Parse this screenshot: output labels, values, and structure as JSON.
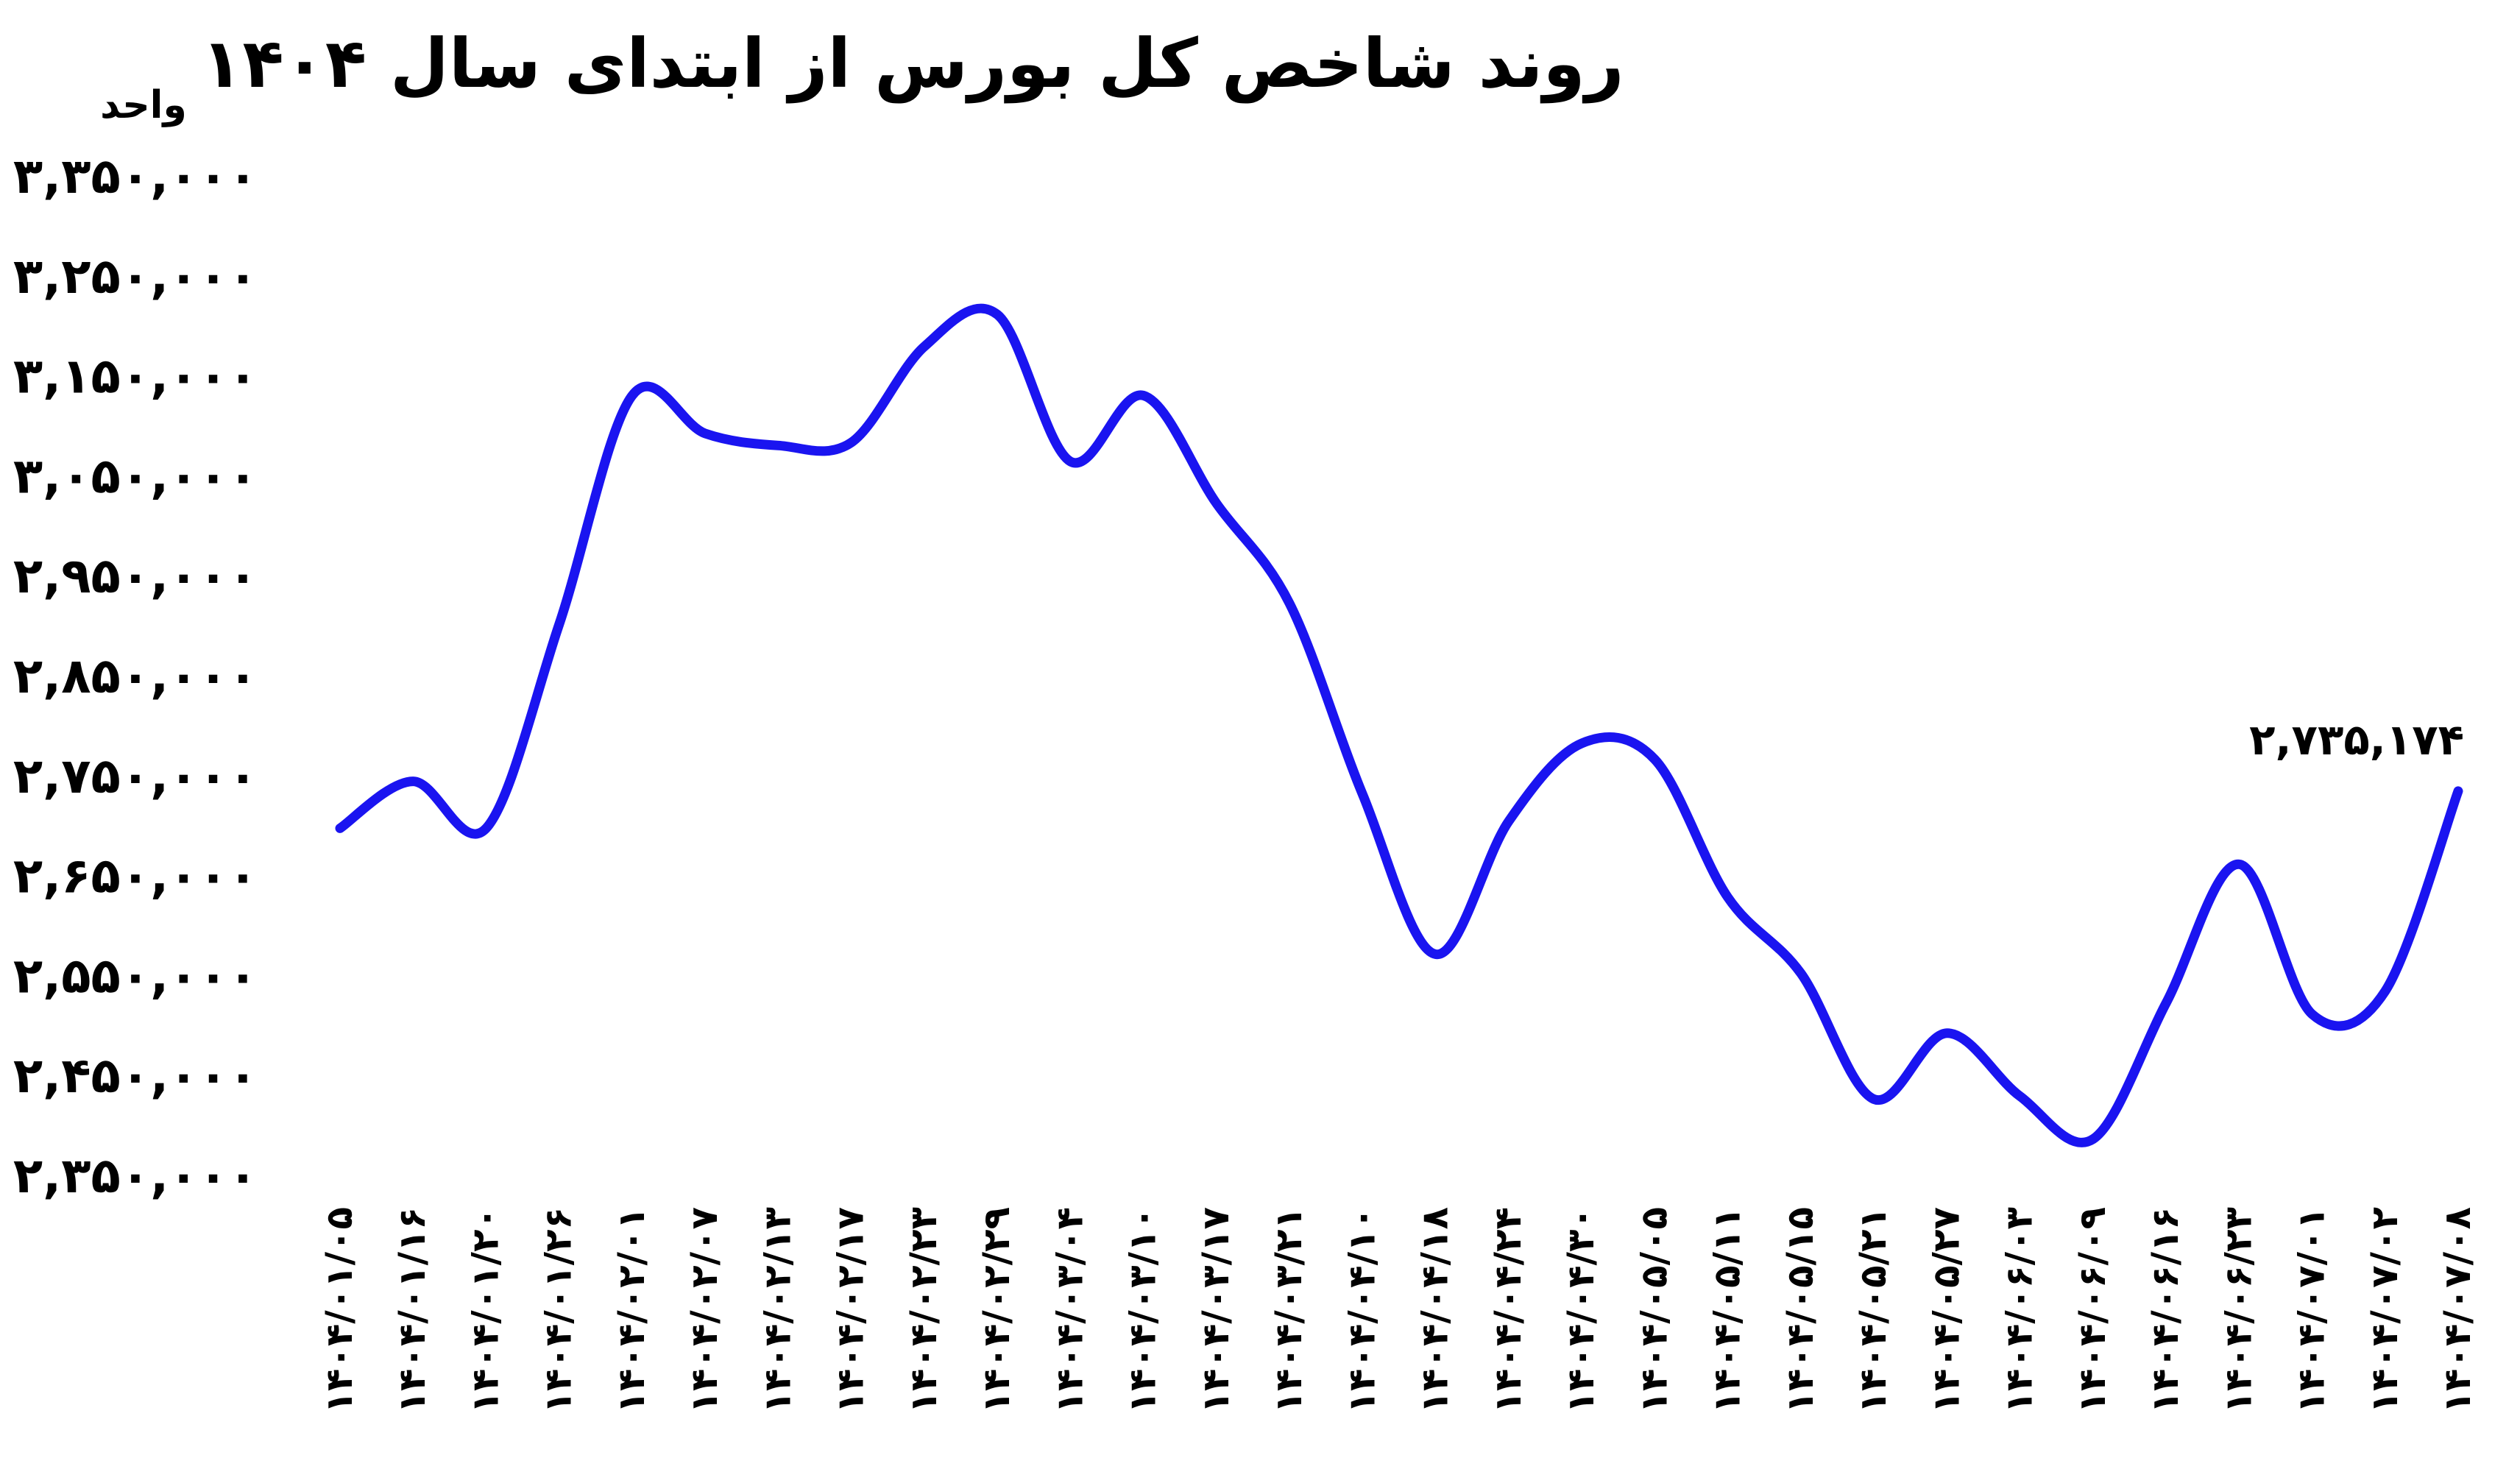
{
  "chart_data": {
    "type": "line",
    "title": "روند شاخص کل بورس از ابتدای سال ۱۴۰۴",
    "ylabel": "واحد",
    "xlabel": "",
    "ylim": [
      2350000,
      3350000
    ],
    "grid": false,
    "legend": "none",
    "colors": {
      "line": "#1a14f0",
      "text": "#000000",
      "background": "#ffffff"
    },
    "y_ticks": [
      "۲,۳۵۰,۰۰۰",
      "۲,۴۵۰,۰۰۰",
      "۲,۵۵۰,۰۰۰",
      "۲,۶۵۰,۰۰۰",
      "۲,۷۵۰,۰۰۰",
      "۲,۸۵۰,۰۰۰",
      "۲,۹۵۰,۰۰۰",
      "۳,۰۵۰,۰۰۰",
      "۳,۱۵۰,۰۰۰",
      "۳,۲۵۰,۰۰۰",
      "۳,۳۵۰,۰۰۰"
    ],
    "y_tick_values": [
      2350000,
      2450000,
      2550000,
      2650000,
      2750000,
      2850000,
      2950000,
      3050000,
      3150000,
      3250000,
      3350000
    ],
    "categories": [
      "۱۴۰۴/۰۱/۰۵",
      "۱۴۰۴/۰۱/۱۶",
      "۱۴۰۴/۰۱/۲۰",
      "۱۴۰۴/۰۱/۲۶",
      "۱۴۰۴/۰۲/۰۱",
      "۱۴۰۴/۰۲/۰۷",
      "۱۴۰۴/۰۲/۱۳",
      "۱۴۰۴/۰۲/۱۷",
      "۱۴۰۴/۰۲/۲۳",
      "۱۴۰۴/۰۲/۲۹",
      "۱۴۰۴/۰۳/۰۴",
      "۱۴۰۴/۰۳/۱۰",
      "۱۴۰۴/۰۳/۱۷",
      "۱۴۰۴/۰۳/۲۱",
      "۱۴۰۴/۰۴/۱۰",
      "۱۴۰۴/۰۴/۱۸",
      "۱۴۰۴/۰۴/۲۴",
      "۱۴۰۴/۰۴/۳۰",
      "۱۴۰۴/۰۵/۰۵",
      "۱۴۰۴/۰۵/۱۱",
      "۱۴۰۴/۰۵/۱۵",
      "۱۴۰۴/۰۵/۲۱",
      "۱۴۰۴/۰۵/۲۷",
      "۱۴۰۴/۰۶/۰۳",
      "۱۴۰۴/۰۶/۰۹",
      "۱۴۰۴/۰۶/۱۶",
      "۱۴۰۴/۰۶/۲۳",
      "۱۴۰۴/۰۷/۰۱",
      "۱۴۰۴/۰۷/۰۲",
      "۱۴۰۴/۰۷/۰۸"
    ],
    "values": [
      2698000,
      2745000,
      2698000,
      2902000,
      3131000,
      3093000,
      3081000,
      3084000,
      3180000,
      3212000,
      3065000,
      3131000,
      3023000,
      2923000,
      2732000,
      2572000,
      2705000,
      2783000,
      2767000,
      2629000,
      2553000,
      2427000,
      2493000,
      2430000,
      2387000,
      2523000,
      2662000,
      2512000,
      2535000,
      2735174
    ],
    "annotations": [
      {
        "category": "۱۴۰۴/۰۷/۰۸",
        "text": "۲,۷۳۵,۱۷۴"
      }
    ]
  }
}
